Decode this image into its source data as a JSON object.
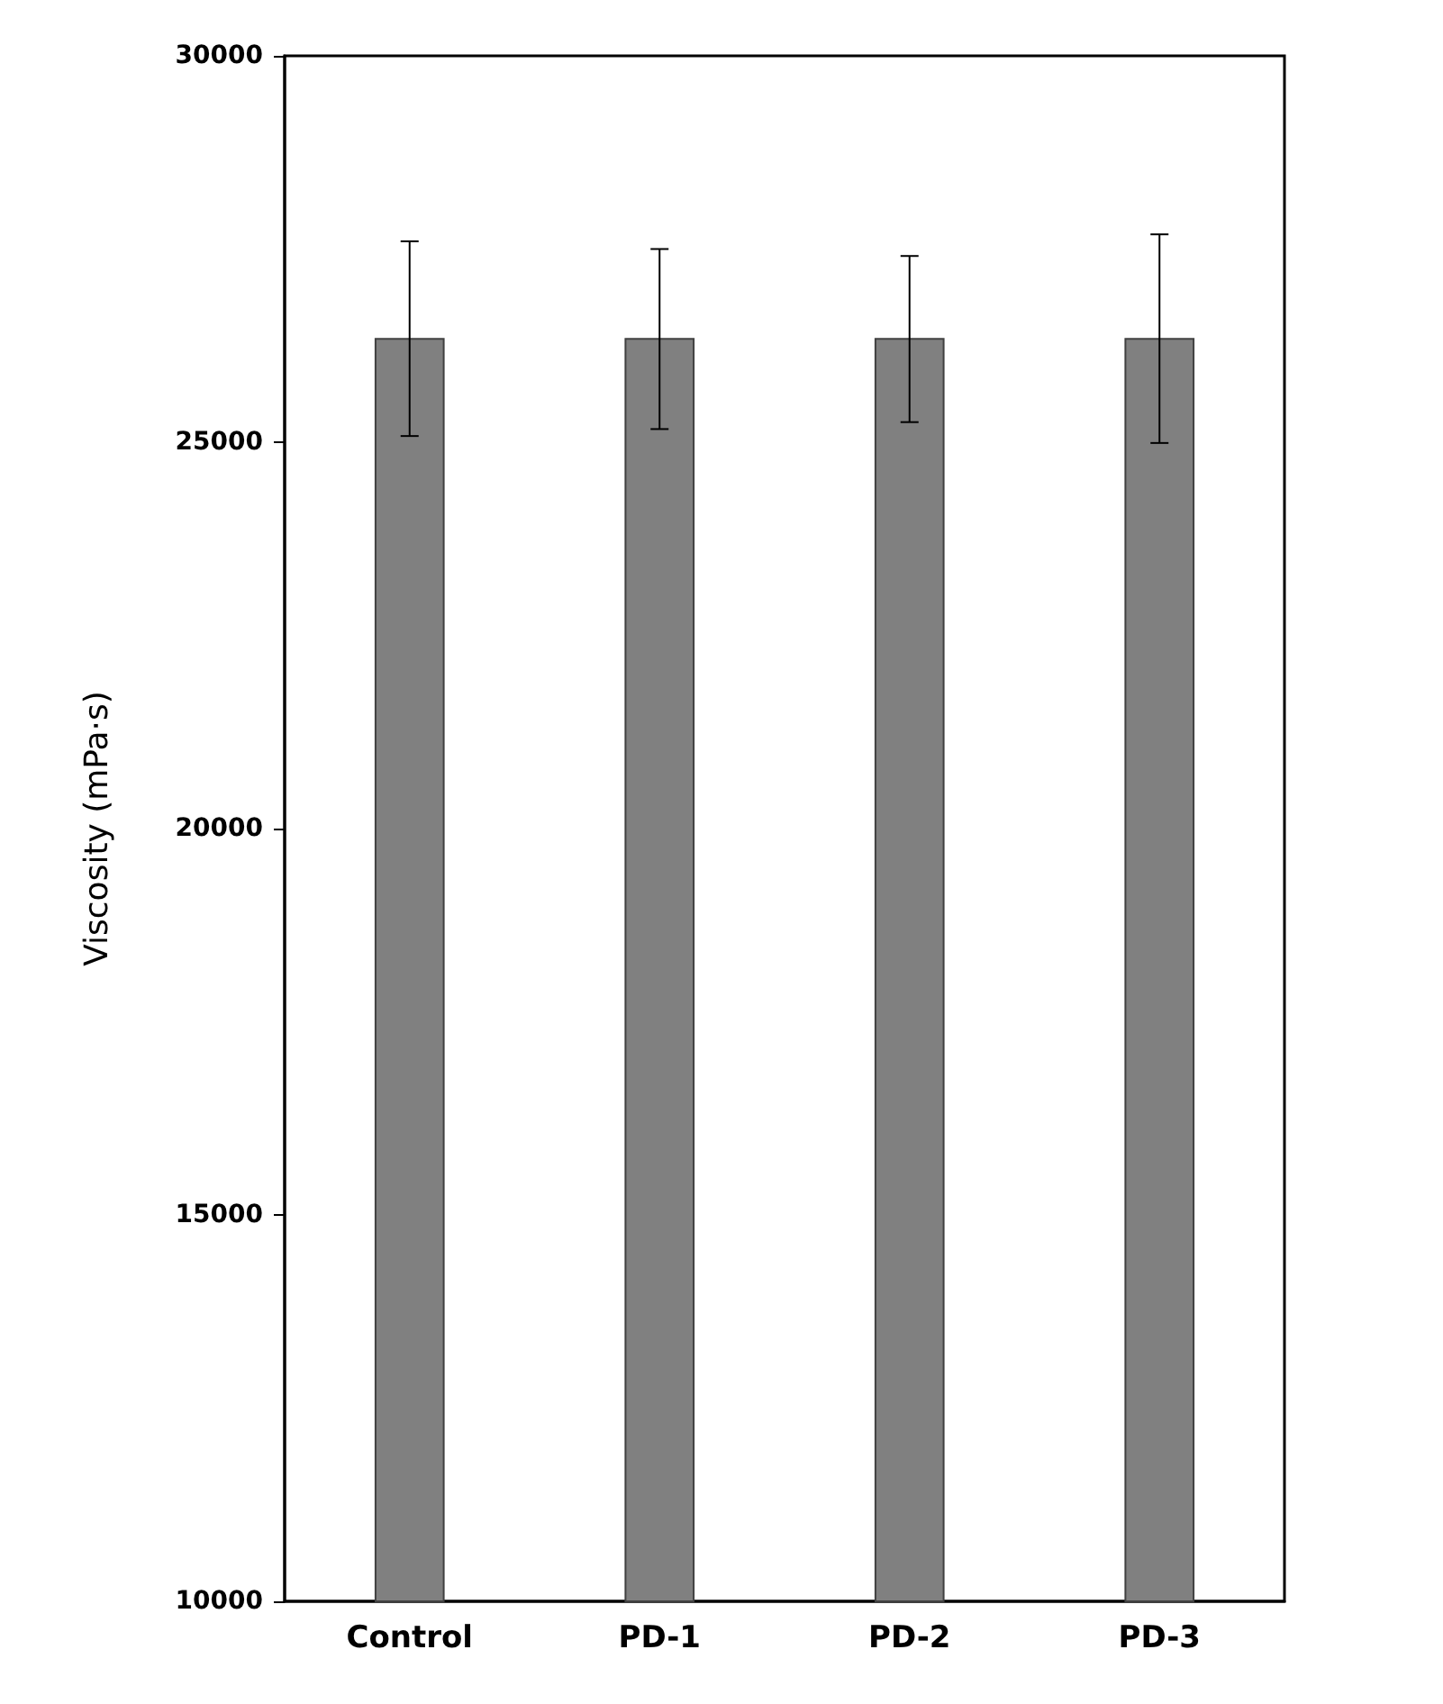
{
  "chart_data": {
    "type": "bar",
    "ylabel": "Viscosity (mPa·s)",
    "categories": [
      "Control",
      "PD-1",
      "PD-2",
      "PD-3"
    ],
    "values": [
      26350,
      26350,
      26350,
      26350
    ],
    "errors": [
      [
        25080,
        27600
      ],
      [
        25170,
        27500
      ],
      [
        25260,
        27410
      ],
      [
        24990,
        27690
      ]
    ],
    "color": "#808080",
    "ylim": [
      10000,
      30000
    ],
    "yticks": [
      10000,
      15000,
      20000,
      25000,
      30000
    ],
    "grid": false
  }
}
